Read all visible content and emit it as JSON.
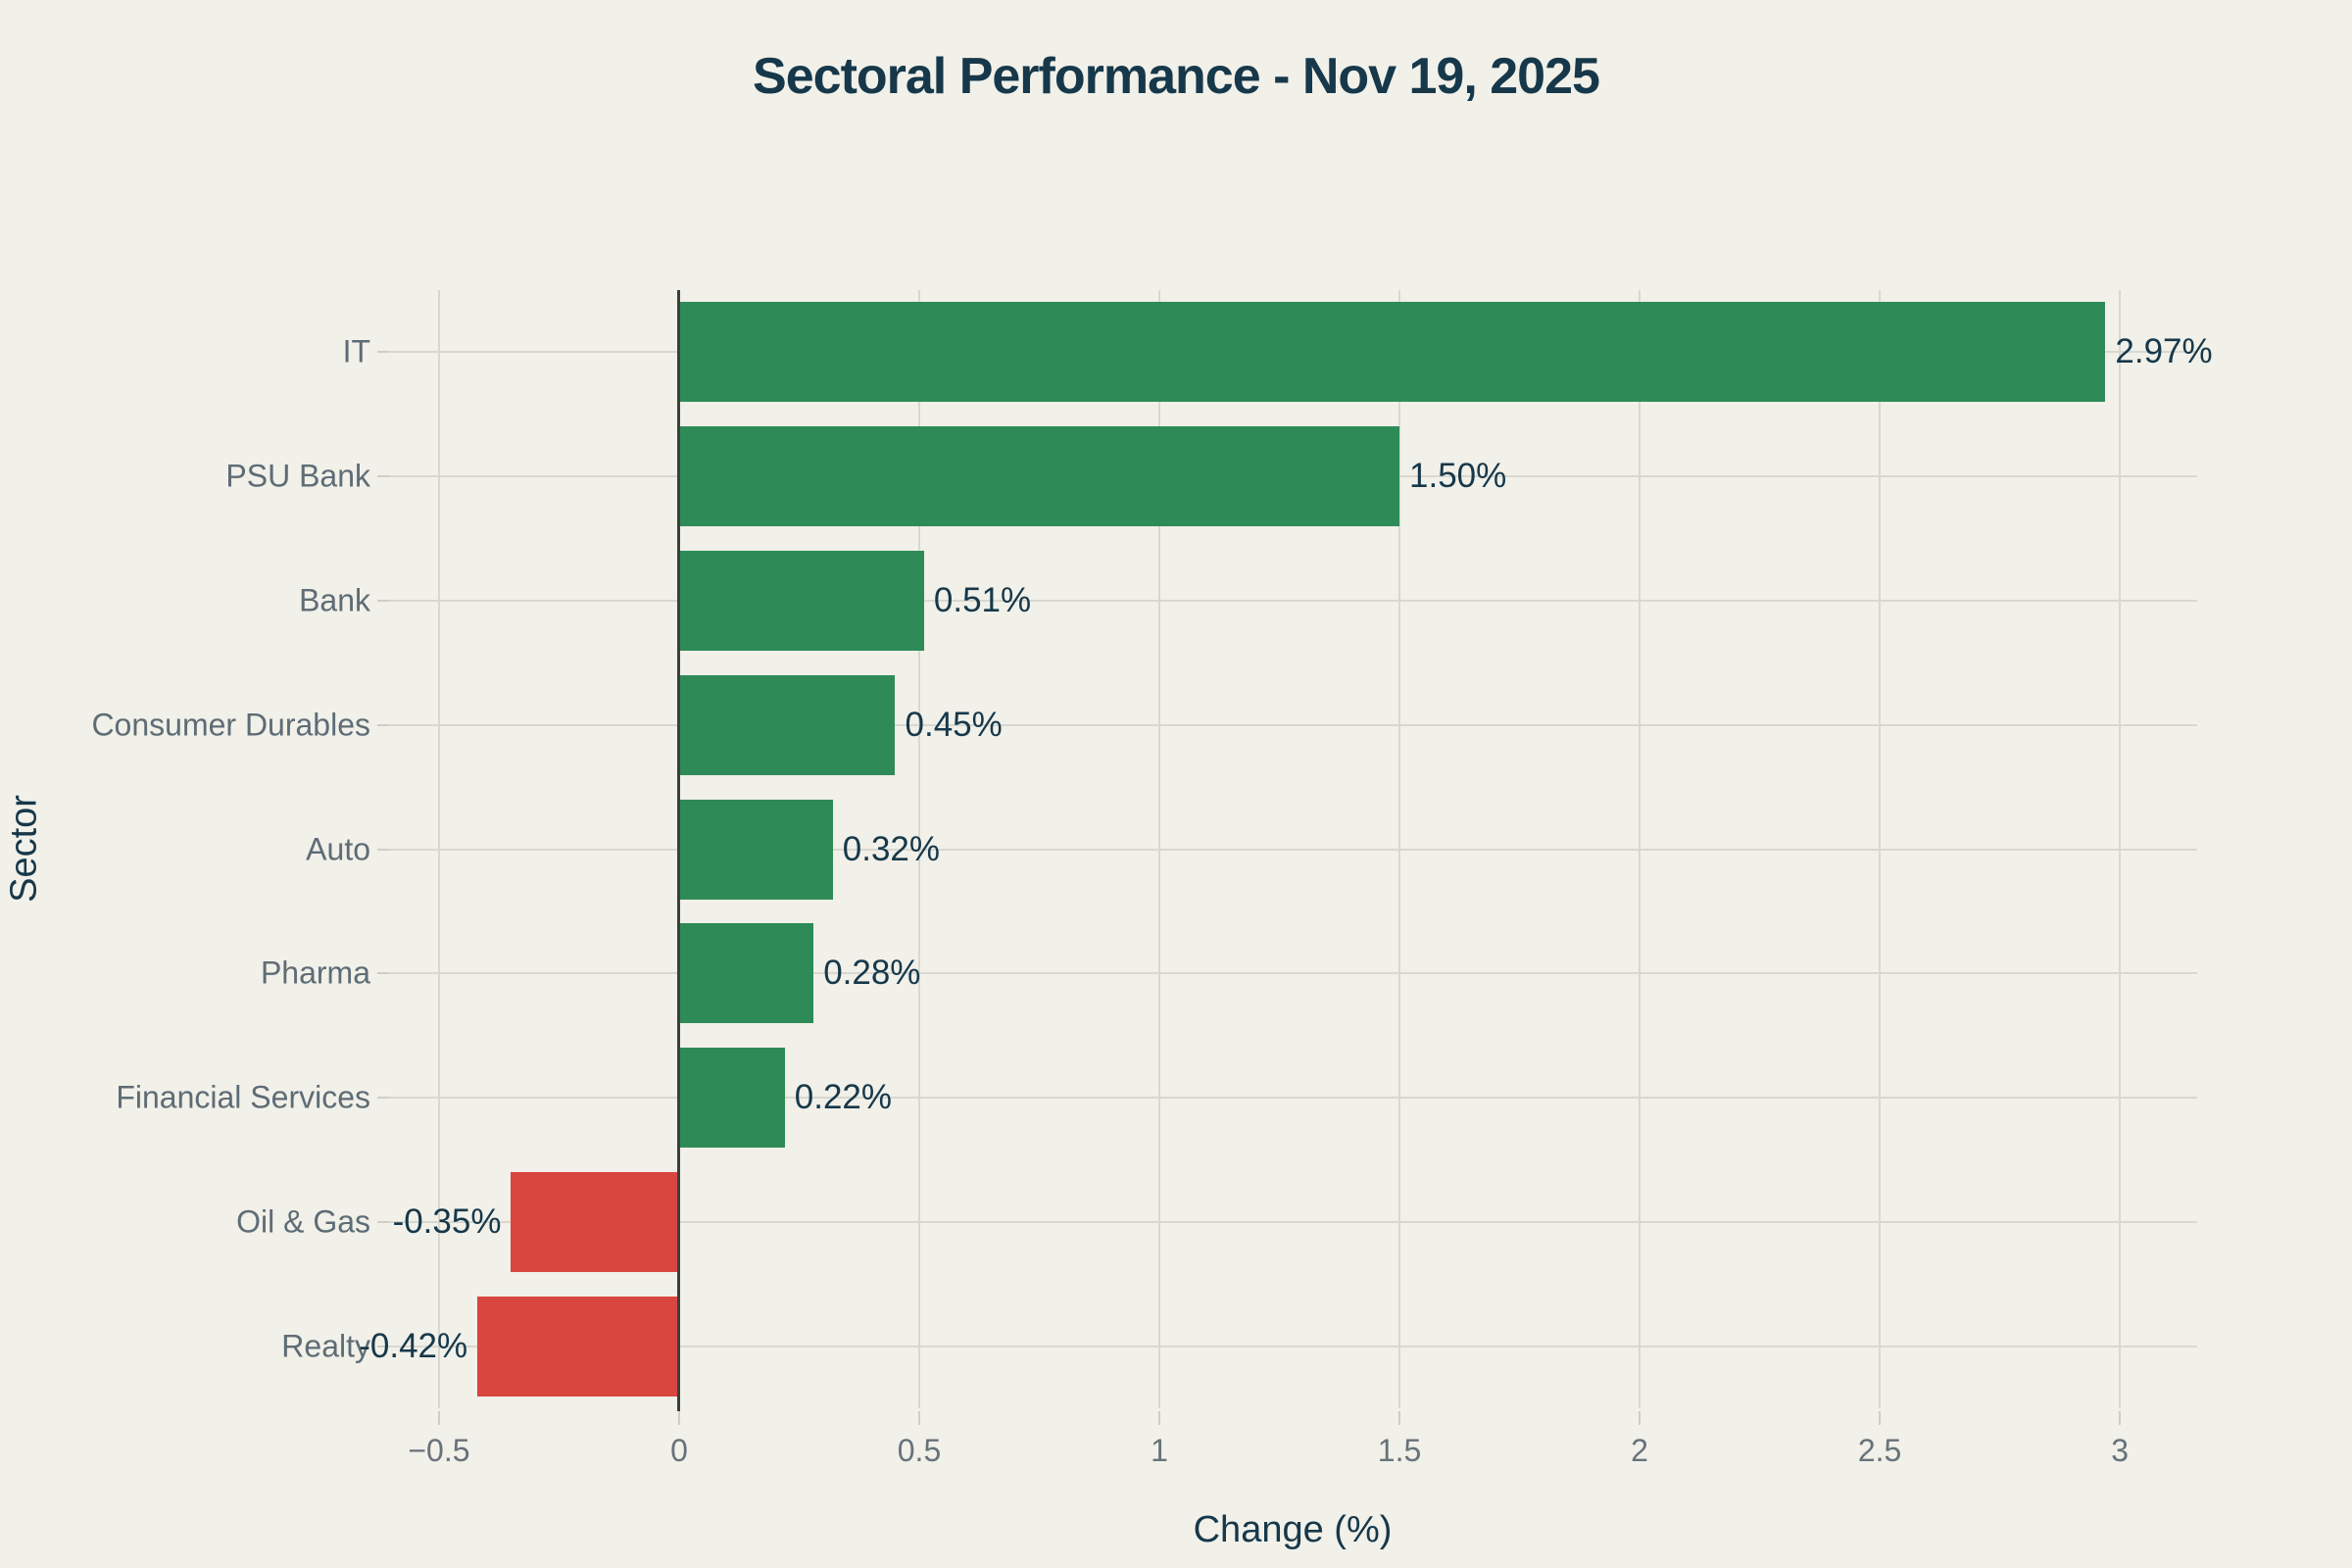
{
  "title": "Sectoral Performance - Nov 19, 2025",
  "colors": {
    "background": "#f1f0e9",
    "positive_bar": "#2e8b57",
    "negative_bar": "#d9453f",
    "gridline": "#d9d8d0",
    "zero_line": "#3b3f3d",
    "title_text": "#16384a",
    "category_text": "#5e6c75",
    "tick_text": "#68727a",
    "value_text": "#16384a"
  },
  "chart_data": {
    "type": "bar",
    "orientation": "horizontal",
    "title": "Sectoral Performance - Nov 19, 2025",
    "xlabel": "Change (%)",
    "ylabel": "Sector",
    "categories": [
      "IT",
      "PSU Bank",
      "Bank",
      "Consumer Durables",
      "Auto",
      "Pharma",
      "Financial Services",
      "Oil & Gas",
      "Realty"
    ],
    "values": [
      2.97,
      1.5,
      0.51,
      0.45,
      0.32,
      0.28,
      0.22,
      -0.35,
      -0.42
    ],
    "value_labels": [
      "2.97%",
      "1.50%",
      "0.51%",
      "0.45%",
      "0.32%",
      "0.28%",
      "0.22%",
      "-0.35%",
      "-0.42%"
    ],
    "x_tick_values": [
      -0.5,
      0,
      0.5,
      1,
      1.5,
      2,
      2.5,
      3
    ],
    "x_tick_labels": [
      "−0.5",
      "0",
      "0.5",
      "1",
      "1.5",
      "2",
      "2.5",
      "3"
    ],
    "xlim": [
      -0.604,
      3.161
    ],
    "grid": true,
    "legend": false,
    "color_rule": "green for positive values, red for negative values"
  }
}
